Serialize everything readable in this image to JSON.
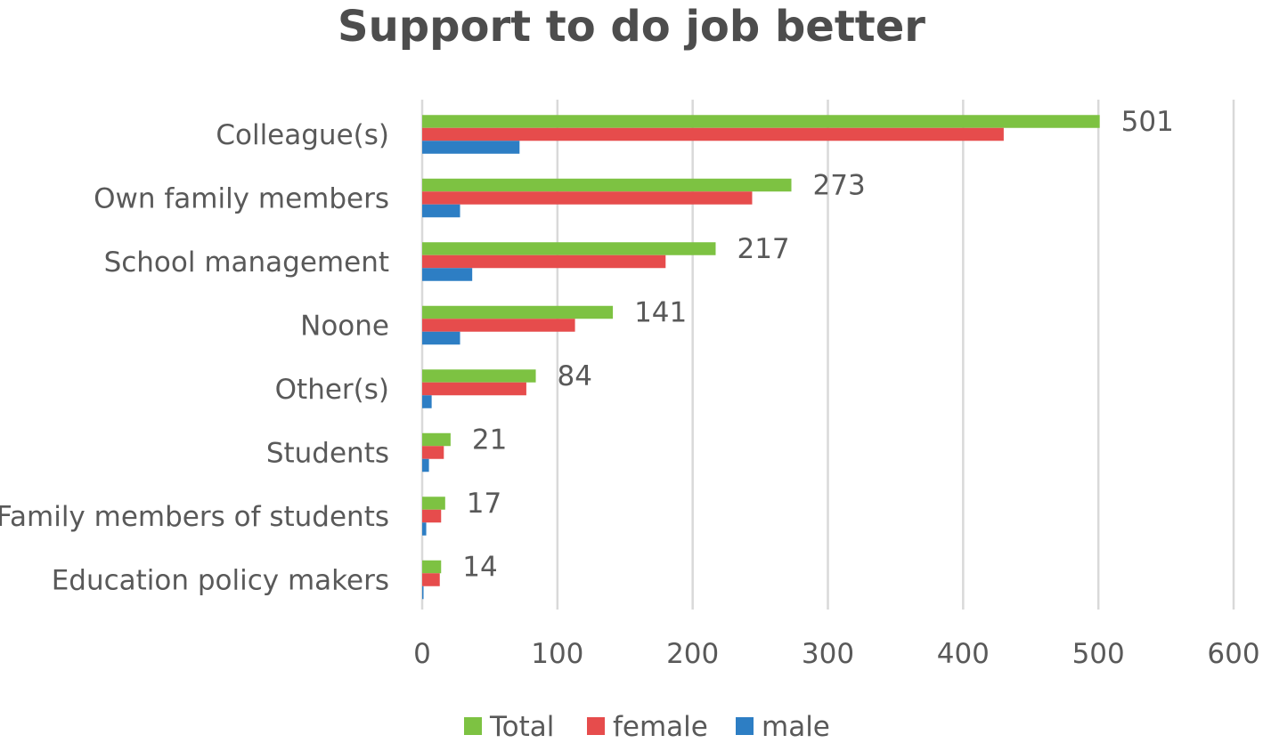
{
  "chart_data": {
    "type": "bar",
    "orientation": "horizontal",
    "title": "Support to do job better",
    "categories": [
      "Colleague(s)",
      "Own family members",
      "School management",
      "Noone",
      "Other(s)",
      "Students",
      "Family members of students",
      "Education policy makers"
    ],
    "series": [
      {
        "name": "Total",
        "color": "#7dc242",
        "values": [
          501,
          273,
          217,
          141,
          84,
          21,
          17,
          14
        ]
      },
      {
        "name": "female",
        "color": "#e64c4c",
        "values": [
          430,
          244,
          180,
          113,
          77,
          16,
          14,
          13
        ]
      },
      {
        "name": "male",
        "color": "#2d7ec4",
        "values": [
          72,
          28,
          37,
          28,
          7,
          5,
          3,
          1
        ]
      }
    ],
    "data_labels": [
      "501",
      "273",
      "217",
      "141",
      "84",
      "21",
      "17",
      "14"
    ],
    "xlim": [
      0,
      600
    ],
    "x_ticks": [
      "0",
      "100",
      "200",
      "300",
      "400",
      "500",
      "600"
    ],
    "grid": "vertical major gridlines",
    "legend_position": "bottom"
  }
}
